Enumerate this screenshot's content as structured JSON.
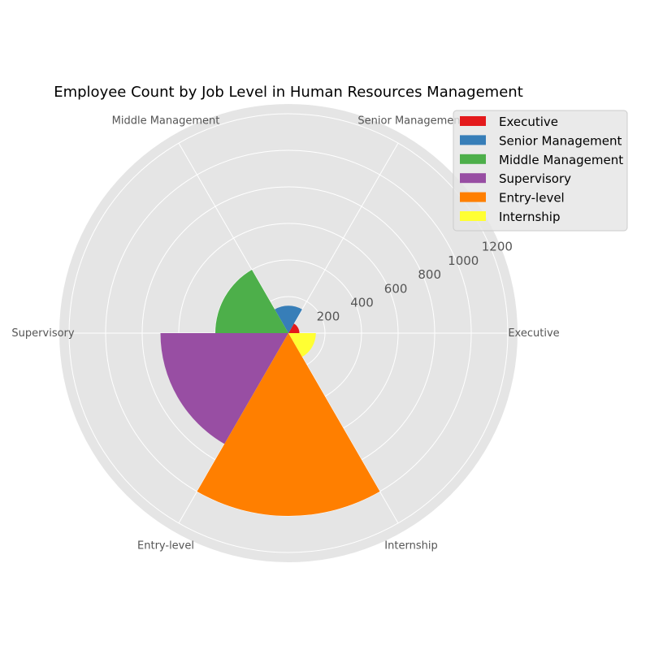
{
  "chart_data": {
    "type": "polar-bar",
    "title": "Employee Count by Job Level in Human Resources Management",
    "categories": [
      "Executive",
      "Senior Management",
      "Middle Management",
      "Supervisory",
      "Entry-level",
      "Internship"
    ],
    "values": [
      60,
      150,
      400,
      700,
      1000,
      150
    ],
    "colors": [
      "#e41a1c",
      "#377eb8",
      "#4daf4a",
      "#984ea3",
      "#ff7f00",
      "#ffff33"
    ],
    "radial_ticks": [
      200,
      400,
      600,
      800,
      1000,
      1200
    ],
    "rlim": [
      0,
      1200
    ],
    "grid": true,
    "legend_position": "top-right",
    "legend": [
      "Executive",
      "Senior Management",
      "Middle Management",
      "Supervisory",
      "Entry-level",
      "Internship"
    ]
  }
}
